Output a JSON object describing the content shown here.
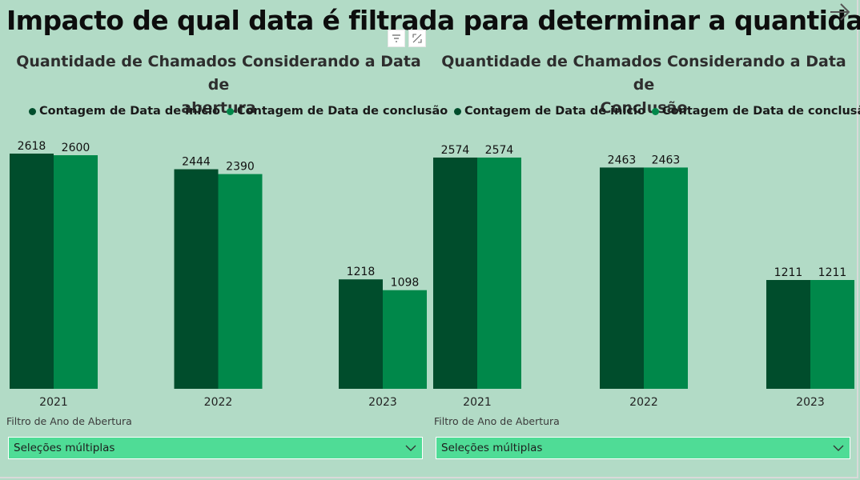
{
  "page": {
    "title": "Impacto de qual data é filtrada para determinar a quantidade"
  },
  "colors": {
    "background": "#b2dbc6",
    "series_start": "#004d2c",
    "series_end": "#00884a",
    "slicer": "#4fdc96"
  },
  "icons": {
    "nav": "arrow-right-icon",
    "filter": "filter-icon",
    "focus": "focus-mode-icon",
    "dropdown": "chevron-down-icon"
  },
  "chart_data": [
    {
      "type": "bar",
      "title": "Quantidade de Chamados Considerando a Data de abertura",
      "title_lines": [
        "Quantidade de Chamados Considerando a Data de",
        "abertura"
      ],
      "categories": [
        "2021",
        "2022",
        "2023"
      ],
      "series": [
        {
          "name": "Contagem de Data de início",
          "values": [
            2618,
            2444,
            1218
          ]
        },
        {
          "name": "Contagem de Data de conclusão",
          "values": [
            2600,
            2390,
            1098
          ]
        }
      ],
      "ylim": [
        0,
        2618
      ],
      "legend": "top-center",
      "grid": false
    },
    {
      "type": "bar",
      "title": "Quantidade de Chamados Considerando a Data de Conclusão",
      "title_lines": [
        "Quantidade de Chamados Considerando a Data de",
        "Conclusão"
      ],
      "categories": [
        "2021",
        "2022",
        "2023"
      ],
      "series": [
        {
          "name": "Contagem de Data de início",
          "values": [
            2574,
            2463,
            1211
          ]
        },
        {
          "name": "Contagem de Data de conclusão",
          "values": [
            2574,
            2463,
            1211
          ]
        }
      ],
      "ylim": [
        0,
        2618
      ],
      "legend": "top-center",
      "grid": false
    }
  ],
  "slicers": [
    {
      "label": "Filtro de Ano de Abertura",
      "value": "Seleções múltiplas"
    },
    {
      "label": "Filtro de Ano de Abertura",
      "value": "Seleções múltiplas"
    }
  ]
}
